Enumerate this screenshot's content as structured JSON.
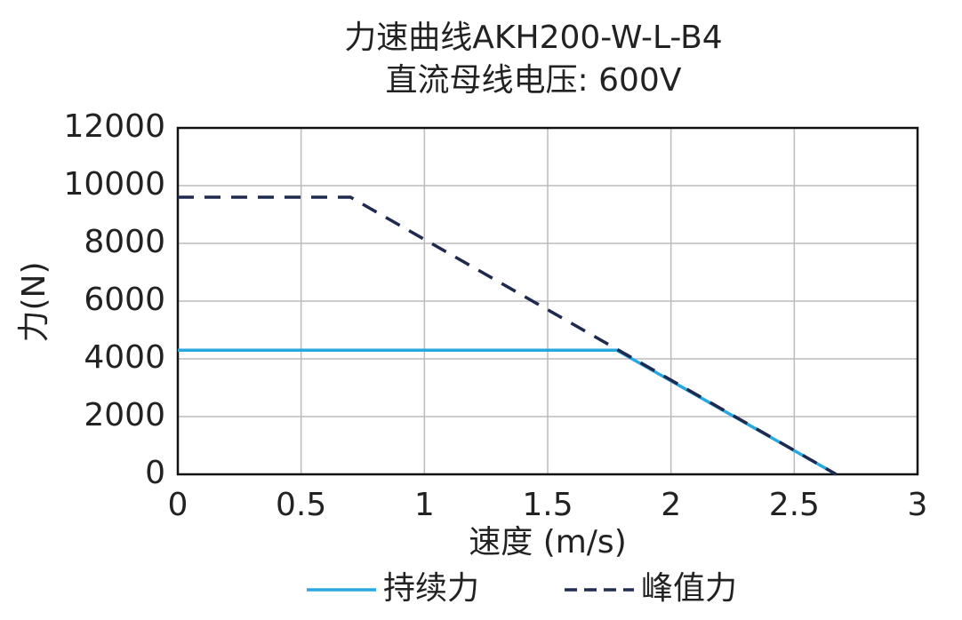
{
  "chart_data": {
    "type": "line",
    "title": "力速曲线AKH200-W-L-B4",
    "subtitle": "直流母线电压: 600V",
    "x_label": "速度 (m/s)",
    "y_label": "力(N)",
    "xlim": [
      0,
      3
    ],
    "xticks": [
      0,
      0.5,
      1,
      1.5,
      2,
      2.5,
      3
    ],
    "ylim": [
      0,
      12000
    ],
    "yticks": [
      0,
      2000,
      4000,
      6000,
      8000,
      10000,
      12000
    ],
    "grid": true,
    "legend": "bottom",
    "series": [
      {
        "name": "持续力",
        "color": "#29a8e0",
        "dashed": false,
        "x": [
          0,
          1.78,
          2.67
        ],
        "values": [
          4300,
          4300,
          0
        ]
      },
      {
        "name": "峰值力",
        "color": "#1f2a4f",
        "dashed": true,
        "x": [
          0,
          0.7,
          2.67
        ],
        "values": [
          9600,
          9600,
          0
        ]
      }
    ]
  }
}
